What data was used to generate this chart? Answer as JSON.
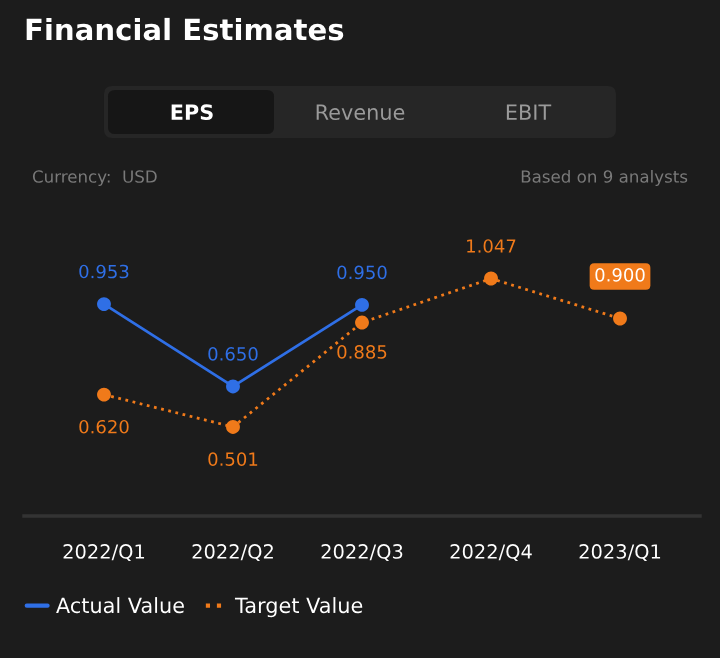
{
  "chart_data": {
    "type": "line",
    "title": "Financial Estimates",
    "categories": [
      "2022/Q1",
      "2022/Q2",
      "2022/Q3",
      "2022/Q4",
      "2023/Q1"
    ],
    "series": [
      {
        "name": "Actual Value",
        "color": "#2f6fe6",
        "values": [
          0.953,
          0.65,
          0.95,
          null,
          null
        ],
        "value_labels": [
          "0.953",
          "0.650",
          "0.950",
          null,
          null
        ],
        "line_style": "solid"
      },
      {
        "name": "Target Value",
        "color": "#f07a1a",
        "values": [
          0.62,
          0.501,
          0.885,
          1.047,
          0.9
        ],
        "value_labels": [
          "0.620",
          "0.501",
          "0.885",
          "1.047",
          "0.900"
        ],
        "line_style": "dotted"
      }
    ],
    "marker": "circle",
    "grid": false,
    "legend": "bottom left",
    "annotations": [
      "EPS",
      "Revenue",
      "EBIT",
      "Currency:  USD",
      "Based on 9 analysts"
    ]
  }
}
